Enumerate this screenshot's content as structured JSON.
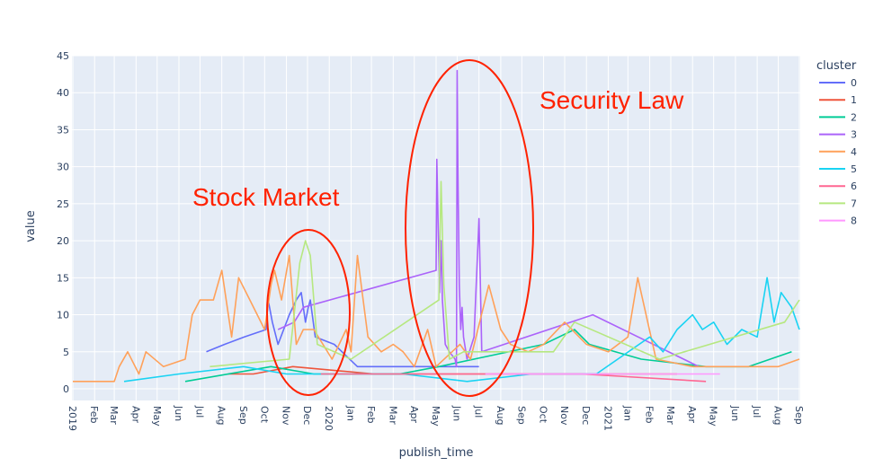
{
  "chart_data": {
    "type": "line",
    "xlabel": "publish_time",
    "ylabel": "value",
    "ylim": [
      0,
      45
    ],
    "y_ticks": [
      0,
      5,
      10,
      15,
      20,
      25,
      30,
      35,
      40,
      45
    ],
    "xlim": [
      "2019-01-01",
      "2021-10-31"
    ],
    "x_tick_labels": [
      {
        "date": "2019-01-01",
        "label": "2019"
      },
      {
        "date": "2019-02-01",
        "label": "Feb"
      },
      {
        "date": "2019-03-01",
        "label": "Mar"
      },
      {
        "date": "2019-04-01",
        "label": "Apr"
      },
      {
        "date": "2019-05-01",
        "label": "May"
      },
      {
        "date": "2019-06-01",
        "label": "Jun"
      },
      {
        "date": "2019-07-01",
        "label": "Jul"
      },
      {
        "date": "2019-08-01",
        "label": "Aug"
      },
      {
        "date": "2019-09-01",
        "label": "Sep"
      },
      {
        "date": "2019-10-01",
        "label": "Oct"
      },
      {
        "date": "2019-11-01",
        "label": "Nov"
      },
      {
        "date": "2019-12-01",
        "label": "Dec"
      },
      {
        "date": "2020-01-01",
        "label": "2020"
      },
      {
        "date": "2020-02-01",
        "label": "Jan"
      },
      {
        "date": "2020-03-01",
        "label": "Feb"
      },
      {
        "date": "2020-04-01",
        "label": "Mar"
      },
      {
        "date": "2020-05-01",
        "label": "Apr"
      },
      {
        "date": "2020-06-01",
        "label": "May"
      },
      {
        "date": "2020-07-01",
        "label": "Jun"
      },
      {
        "date": "2020-08-01",
        "label": "Jul"
      },
      {
        "date": "2020-09-01",
        "label": "Aug"
      },
      {
        "date": "2020-10-01",
        "label": "Sep"
      },
      {
        "date": "2020-11-01",
        "label": "Oct"
      },
      {
        "date": "2020-12-01",
        "label": "Nov"
      },
      {
        "date": "2021-01-01",
        "label": "Dec"
      },
      {
        "date": "2021-02-01",
        "label": "2021"
      },
      {
        "date": "2021-03-01",
        "label": "Jan"
      },
      {
        "date": "2021-04-01",
        "label": "Feb"
      },
      {
        "date": "2021-05-01",
        "label": "Mar"
      },
      {
        "date": "2021-06-01",
        "label": "Apr"
      },
      {
        "date": "2021-07-01",
        "label": "May"
      },
      {
        "date": "2021-08-01",
        "label": "Jun"
      },
      {
        "date": "2021-09-01",
        "label": "Jul"
      },
      {
        "date": "2021-10-01",
        "label": "Aug"
      },
      {
        "date": "2021-10-31",
        "label": "Sep"
      }
    ],
    "grid": true,
    "legend": {
      "title": "cluster",
      "placement": "right"
    },
    "series": [
      {
        "name": "0",
        "color": "#636efa",
        "points": [
          [
            "2019-07-10",
            5
          ],
          [
            "2019-08-05",
            6
          ],
          [
            "2019-09-02",
            7
          ],
          [
            "2019-10-03",
            8
          ],
          [
            "2019-10-06",
            12
          ],
          [
            "2019-10-12",
            9
          ],
          [
            "2019-10-20",
            6
          ],
          [
            "2019-11-05",
            10
          ],
          [
            "2019-11-15",
            12
          ],
          [
            "2019-11-22",
            13
          ],
          [
            "2019-11-28",
            9
          ],
          [
            "2019-12-02",
            11
          ],
          [
            "2019-12-05",
            12
          ],
          [
            "2019-12-12",
            7
          ],
          [
            "2020-01-08",
            6
          ],
          [
            "2020-02-10",
            3
          ],
          [
            "2020-06-15",
            3
          ],
          [
            "2020-08-01",
            3
          ]
        ]
      },
      {
        "name": "1",
        "color": "#ef553b",
        "points": [
          [
            "2019-08-10",
            2
          ],
          [
            "2019-09-15",
            2
          ],
          [
            "2019-11-10",
            3
          ],
          [
            "2020-03-05",
            2
          ],
          [
            "2020-06-10",
            2
          ],
          [
            "2020-10-05",
            2
          ],
          [
            "2021-01-10",
            2
          ],
          [
            "2021-05-10",
            2
          ]
        ]
      },
      {
        "name": "2",
        "color": "#00cc96",
        "points": [
          [
            "2019-06-10",
            1
          ],
          [
            "2019-10-10",
            3
          ],
          [
            "2019-12-10",
            2
          ],
          [
            "2020-04-10",
            2
          ],
          [
            "2020-06-05",
            3
          ],
          [
            "2020-11-01",
            6
          ],
          [
            "2020-12-15",
            8
          ],
          [
            "2021-01-05",
            6
          ],
          [
            "2021-03-20",
            4
          ],
          [
            "2021-06-20",
            3
          ],
          [
            "2021-08-20",
            3
          ],
          [
            "2021-10-20",
            5
          ]
        ]
      },
      {
        "name": "3",
        "color": "#ab63fa",
        "points": [
          [
            "2019-10-20",
            8
          ],
          [
            "2019-11-12",
            9
          ],
          [
            "2019-11-25",
            11
          ],
          [
            "2020-06-01",
            16
          ],
          [
            "2020-06-02",
            31
          ],
          [
            "2020-06-04",
            22
          ],
          [
            "2020-06-06",
            13
          ],
          [
            "2020-06-08",
            20
          ],
          [
            "2020-06-10",
            12
          ],
          [
            "2020-06-14",
            6
          ],
          [
            "2020-06-20",
            5
          ],
          [
            "2020-06-28",
            4
          ],
          [
            "2020-06-30",
            3
          ],
          [
            "2020-07-01",
            43
          ],
          [
            "2020-07-02",
            30
          ],
          [
            "2020-07-04",
            14
          ],
          [
            "2020-07-06",
            8
          ],
          [
            "2020-07-08",
            11
          ],
          [
            "2020-07-10",
            7
          ],
          [
            "2020-07-15",
            4
          ],
          [
            "2020-07-25",
            7
          ],
          [
            "2020-08-01",
            23
          ],
          [
            "2020-08-05",
            5
          ],
          [
            "2021-01-10",
            10
          ],
          [
            "2021-06-10",
            3
          ]
        ]
      },
      {
        "name": "4",
        "color": "#ffa15a",
        "points": [
          [
            "2019-01-01",
            1
          ],
          [
            "2019-03-01",
            1
          ],
          [
            "2019-03-08",
            3
          ],
          [
            "2019-03-20",
            5
          ],
          [
            "2019-04-05",
            2
          ],
          [
            "2019-04-15",
            5
          ],
          [
            "2019-05-10",
            3
          ],
          [
            "2019-06-10",
            4
          ],
          [
            "2019-06-20",
            10
          ],
          [
            "2019-07-01",
            12
          ],
          [
            "2019-07-20",
            12
          ],
          [
            "2019-08-01",
            16
          ],
          [
            "2019-08-15",
            7
          ],
          [
            "2019-08-25",
            15
          ],
          [
            "2019-09-10",
            12
          ],
          [
            "2019-10-01",
            8
          ],
          [
            "2019-10-10",
            14
          ],
          [
            "2019-10-15",
            16
          ],
          [
            "2019-10-25",
            12
          ],
          [
            "2019-11-05",
            18
          ],
          [
            "2019-11-15",
            6
          ],
          [
            "2019-11-25",
            8
          ],
          [
            "2019-12-10",
            8
          ],
          [
            "2020-01-05",
            4
          ],
          [
            "2020-01-25",
            8
          ],
          [
            "2020-02-01",
            5
          ],
          [
            "2020-02-10",
            18
          ],
          [
            "2020-02-25",
            7
          ],
          [
            "2020-03-15",
            5
          ],
          [
            "2020-04-01",
            6
          ],
          [
            "2020-04-15",
            5
          ],
          [
            "2020-05-01",
            3
          ],
          [
            "2020-05-20",
            8
          ],
          [
            "2020-06-01",
            3
          ],
          [
            "2020-07-05",
            6
          ],
          [
            "2020-07-20",
            4
          ],
          [
            "2020-08-15",
            14
          ],
          [
            "2020-09-01",
            8
          ],
          [
            "2020-09-15",
            6
          ],
          [
            "2020-10-10",
            5
          ],
          [
            "2020-11-01",
            6
          ],
          [
            "2020-12-01",
            9
          ],
          [
            "2021-01-01",
            6
          ],
          [
            "2021-02-01",
            5
          ],
          [
            "2021-03-01",
            7
          ],
          [
            "2021-03-15",
            15
          ],
          [
            "2021-04-10",
            4
          ],
          [
            "2021-06-01",
            3
          ],
          [
            "2021-08-01",
            3
          ],
          [
            "2021-10-01",
            3
          ],
          [
            "2021-10-31",
            4
          ]
        ]
      },
      {
        "name": "5",
        "color": "#19d3f3",
        "points": [
          [
            "2019-03-15",
            1
          ],
          [
            "2019-06-01",
            2
          ],
          [
            "2019-09-01",
            3
          ],
          [
            "2019-11-01",
            2
          ],
          [
            "2020-01-15",
            2
          ],
          [
            "2020-04-15",
            2
          ],
          [
            "2020-07-15",
            1
          ],
          [
            "2020-10-15",
            2
          ],
          [
            "2021-01-15",
            2
          ],
          [
            "2021-04-01",
            7
          ],
          [
            "2021-04-20",
            5
          ],
          [
            "2021-05-10",
            8
          ],
          [
            "2021-06-01",
            10
          ],
          [
            "2021-06-15",
            8
          ],
          [
            "2021-07-01",
            9
          ],
          [
            "2021-07-20",
            6
          ],
          [
            "2021-08-10",
            8
          ],
          [
            "2021-09-01",
            7
          ],
          [
            "2021-09-15",
            15
          ],
          [
            "2021-09-25",
            9
          ],
          [
            "2021-10-05",
            13
          ],
          [
            "2021-10-20",
            11
          ],
          [
            "2021-10-31",
            8
          ]
        ]
      },
      {
        "name": "6",
        "color": "#ff6692",
        "points": [
          [
            "2019-12-20",
            2
          ],
          [
            "2020-07-25",
            2
          ],
          [
            "2020-12-25",
            2
          ],
          [
            "2021-06-20",
            1
          ]
        ]
      },
      {
        "name": "7",
        "color": "#b6e880",
        "points": [
          [
            "2019-07-15",
            3
          ],
          [
            "2019-11-05",
            4
          ],
          [
            "2019-11-20",
            17
          ],
          [
            "2019-11-28",
            20
          ],
          [
            "2019-12-05",
            18
          ],
          [
            "2019-12-15",
            6
          ],
          [
            "2020-02-01",
            4
          ],
          [
            "2020-06-05",
            12
          ],
          [
            "2020-06-08",
            28
          ],
          [
            "2020-06-12",
            14
          ],
          [
            "2020-06-20",
            4
          ],
          [
            "2020-07-10",
            5
          ],
          [
            "2020-11-15",
            5
          ],
          [
            "2020-12-15",
            9
          ],
          [
            "2021-04-15",
            4
          ],
          [
            "2021-10-10",
            9
          ],
          [
            "2021-10-31",
            12
          ]
        ]
      },
      {
        "name": "8",
        "color": "#ff97ff",
        "points": [
          [
            "2020-08-10",
            2
          ],
          [
            "2020-10-20",
            2
          ],
          [
            "2021-01-20",
            2
          ],
          [
            "2021-07-10",
            2
          ]
        ]
      }
    ],
    "annotations": [
      {
        "text": "Stock Market"
      },
      {
        "text": "Security Law"
      }
    ]
  },
  "legend_items": [
    {
      "label": "0",
      "color": "#636efa"
    },
    {
      "label": "1",
      "color": "#ef553b"
    },
    {
      "label": "2",
      "color": "#00cc96"
    },
    {
      "label": "3",
      "color": "#ab63fa"
    },
    {
      "label": "4",
      "color": "#ffa15a"
    },
    {
      "label": "5",
      "color": "#19d3f3"
    },
    {
      "label": "6",
      "color": "#ff6692"
    },
    {
      "label": "7",
      "color": "#b6e880"
    },
    {
      "label": "8",
      "color": "#ff97ff"
    }
  ]
}
